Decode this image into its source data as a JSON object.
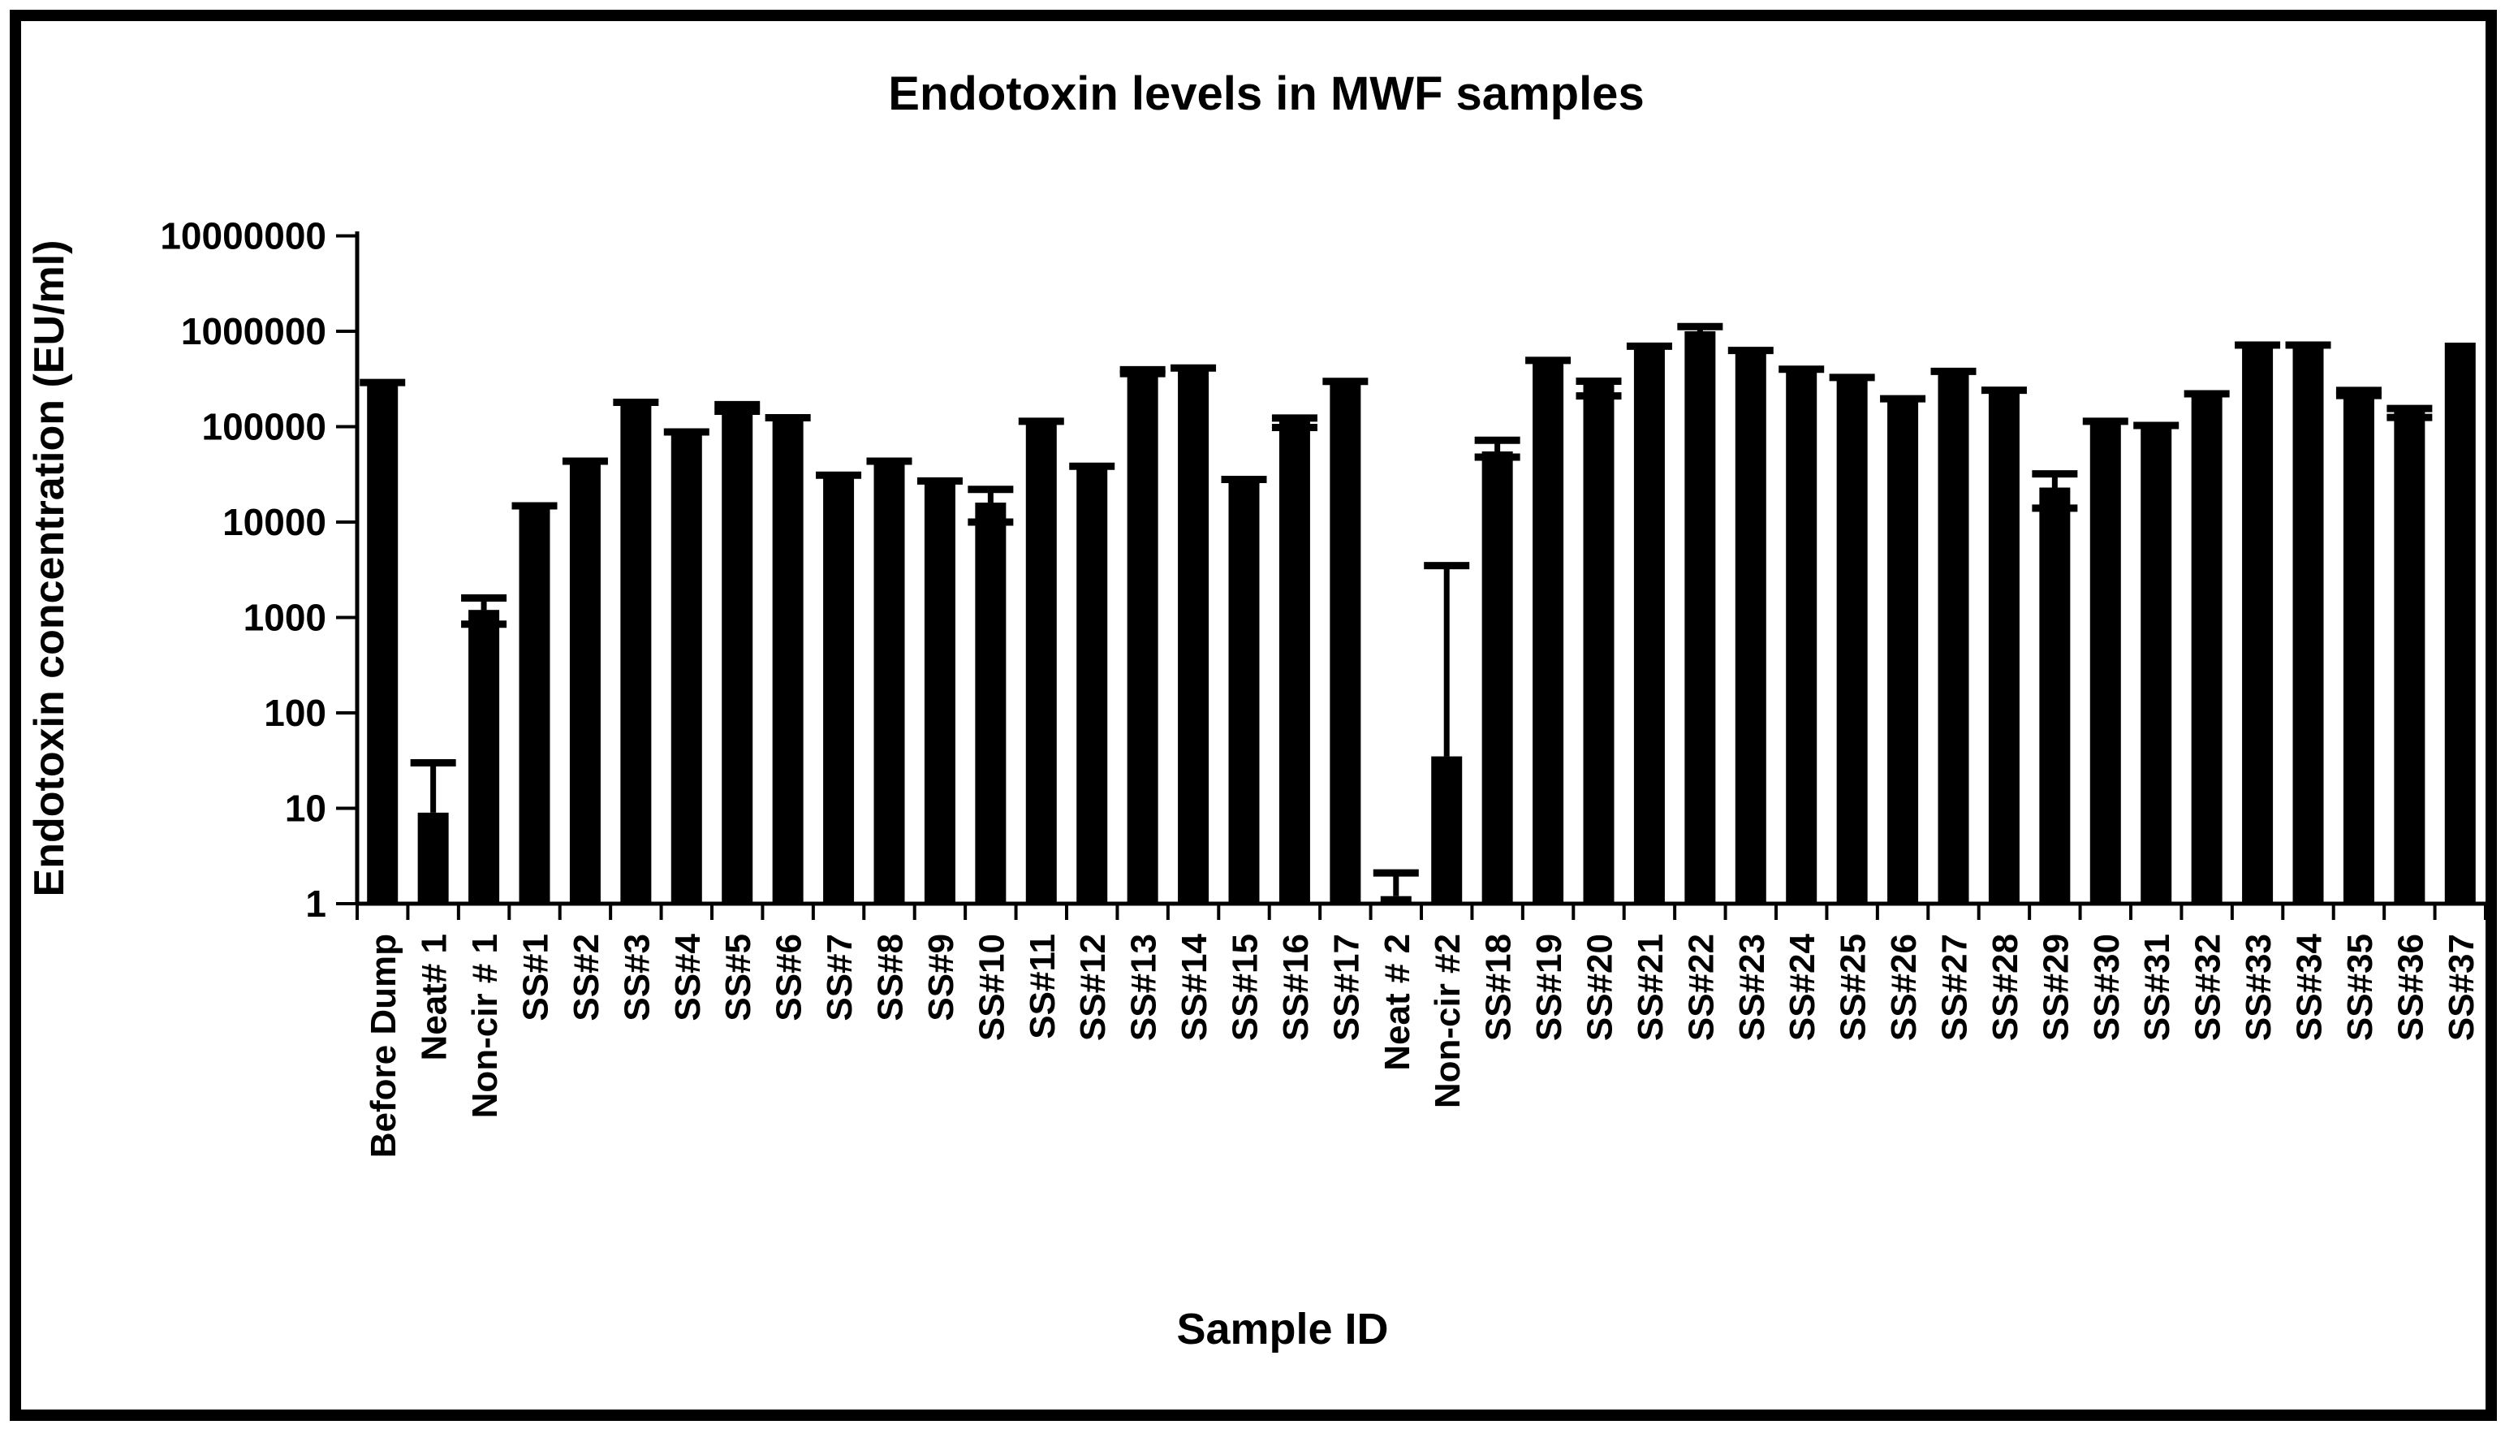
{
  "chart_data": {
    "type": "bar",
    "title": "Endotoxin levels in MWF samples",
    "xlabel": "Sample ID",
    "ylabel": "Endotoxin concentration (EU/ml)",
    "y_scale": "log",
    "ylim": [
      1,
      10000000
    ],
    "y_ticks": [
      1,
      10,
      100,
      1000,
      10000,
      100000,
      1000000,
      10000000
    ],
    "y_tick_labels": [
      "1",
      "10",
      "100",
      "1000",
      "10000",
      "100000",
      "1000000",
      "10000000"
    ],
    "grid": false,
    "legend": "none",
    "bar_color": "#000000",
    "background_color": "#ffffff",
    "categories": [
      "Before Dump",
      "Neat# 1",
      "Non-cir # 1",
      "SS#1",
      "SS#2",
      "SS#3",
      "SS#4",
      "SS#5",
      "SS#6",
      "SS#7",
      "SS#8",
      "SS#9",
      "SS#10",
      "SS#11",
      "SS#12",
      "SS#13",
      "SS#14",
      "SS#15",
      "SS#16",
      "SS#17",
      "Neat # 2",
      "Non-cir #2",
      "SS#18",
      "SS#19",
      "SS#20",
      "SS#21",
      "SS#22",
      "SS#23",
      "SS#24",
      "SS#25",
      "SS#26",
      "SS#27",
      "SS#28",
      "SS#29",
      "SS#30",
      "SS#31",
      "SS#32",
      "SS#33",
      "SS#34",
      "SS#35",
      "SS#36",
      "SS#37"
    ],
    "values": [
      280000,
      9,
      1200,
      14000,
      42000,
      175000,
      85000,
      160000,
      120000,
      30000,
      42000,
      26000,
      16000,
      110000,
      37000,
      380000,
      400000,
      27000,
      115000,
      290000,
      1.2,
      35,
      55000,
      480000,
      285000,
      680000,
      1000000,
      615000,
      390000,
      320000,
      190000,
      370000,
      235000,
      23000,
      110000,
      100000,
      215000,
      700000,
      700000,
      220000,
      145000,
      760000
    ],
    "err_low": [
      null,
      null,
      850,
      null,
      null,
      null,
      null,
      145000,
      null,
      null,
      null,
      null,
      10000,
      null,
      null,
      360000,
      null,
      null,
      98000,
      null,
      null,
      null,
      48000,
      null,
      210000,
      null,
      null,
      null,
      null,
      null,
      null,
      null,
      null,
      14000,
      null,
      null,
      null,
      null,
      null,
      212000,
      125000,
      null
    ],
    "err_high": [
      290000,
      30,
      1600,
      14800,
      43500,
      180000,
      88000,
      170000,
      124000,
      31000,
      43500,
      27000,
      22000,
      114000,
      38500,
      395000,
      412000,
      28000,
      123000,
      298000,
      2.1,
      3500,
      72000,
      495000,
      300000,
      697000,
      1120000,
      630000,
      400000,
      328000,
      196000,
      380000,
      241000,
      32000,
      114000,
      103000,
      221000,
      717000,
      717000,
      240000,
      155000,
      null
    ]
  }
}
